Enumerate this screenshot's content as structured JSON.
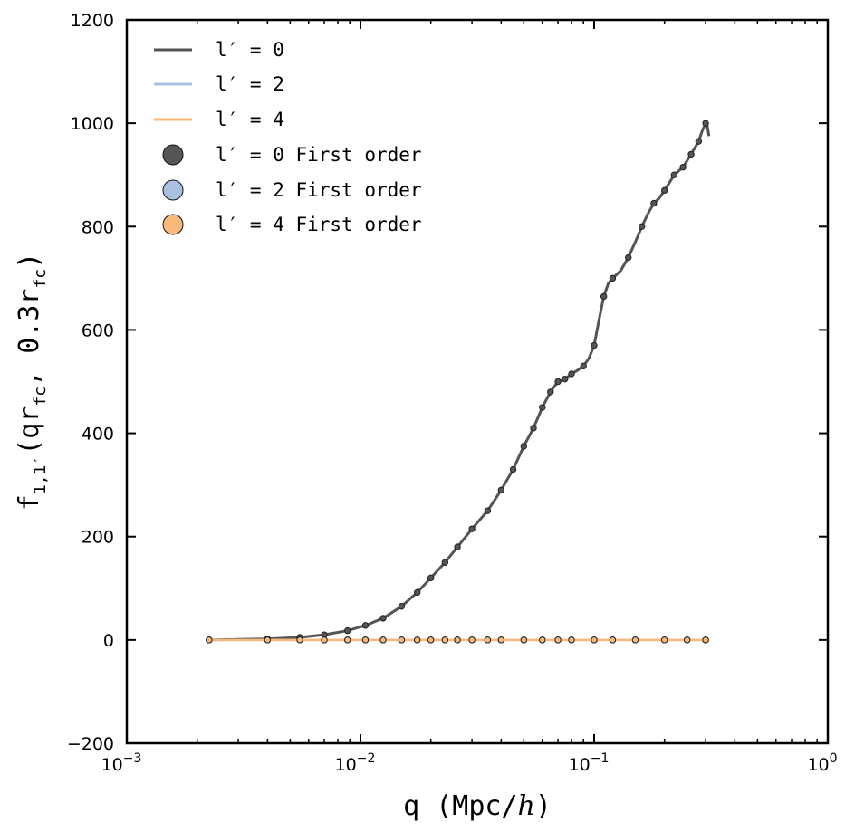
{
  "chart_data": {
    "type": "line",
    "x_scale": "log",
    "xlim": [
      0.001,
      1
    ],
    "ylim": [
      -200,
      1200
    ],
    "xlabel": "q (Mpc/h)",
    "ylabel": "f_{1,1'}(qr_fc, 0.3r_fc)",
    "x_ticks": [
      {
        "value": 0.001,
        "base": "10",
        "exp": "−3"
      },
      {
        "value": 0.01,
        "base": "10",
        "exp": "−2"
      },
      {
        "value": 0.1,
        "base": "10",
        "exp": "−1"
      },
      {
        "value": 1,
        "base": "10",
        "exp": "0"
      }
    ],
    "y_ticks": [
      {
        "value": -200,
        "label": "−200"
      },
      {
        "value": 0,
        "label": "0"
      },
      {
        "value": 200,
        "label": "200"
      },
      {
        "value": 400,
        "label": "400"
      },
      {
        "value": 600,
        "label": "600"
      },
      {
        "value": 800,
        "label": "800"
      },
      {
        "value": 1000,
        "label": "1000"
      },
      {
        "value": 1200,
        "label": "1200"
      }
    ],
    "grid": false,
    "legend_position": "top-left",
    "colors": {
      "l0": "#555555",
      "l2": "#a9c1e0",
      "l4": "#f9b97a"
    },
    "series": [
      {
        "name": "l′ = 0",
        "kind": "line",
        "color": "#555555",
        "x": [
          0.00225,
          0.003,
          0.004,
          0.0055,
          0.007,
          0.0088,
          0.0105,
          0.0125,
          0.015,
          0.0175,
          0.02,
          0.023,
          0.026,
          0.03,
          0.035,
          0.04,
          0.045,
          0.05,
          0.055,
          0.06,
          0.065,
          0.07,
          0.075,
          0.08,
          0.085,
          0.09,
          0.095,
          0.1,
          0.105,
          0.11,
          0.115,
          0.12,
          0.13,
          0.14,
          0.15,
          0.16,
          0.17,
          0.18,
          0.19,
          0.2,
          0.21,
          0.22,
          0.24,
          0.26,
          0.28,
          0.29,
          0.3,
          0.305,
          0.31
        ],
        "y": [
          0,
          1,
          2,
          5,
          10,
          18,
          28,
          42,
          65,
          92,
          120,
          150,
          180,
          215,
          250,
          290,
          330,
          375,
          410,
          450,
          480,
          500,
          505,
          515,
          522,
          530,
          545,
          570,
          620,
          665,
          690,
          700,
          715,
          740,
          770,
          800,
          825,
          845,
          855,
          870,
          885,
          900,
          915,
          940,
          965,
          985,
          1000,
          995,
          975
        ]
      },
      {
        "name": "l′ = 2",
        "kind": "line",
        "color": "#a9c1e0",
        "x": [
          0.00225,
          0.01,
          0.05,
          0.1,
          0.2,
          0.3,
          0.31
        ],
        "y": [
          0,
          0,
          0,
          0,
          0,
          0,
          -2
        ]
      },
      {
        "name": "l′ = 4",
        "kind": "line",
        "color": "#f9b97a",
        "x": [
          0.00225,
          0.01,
          0.05,
          0.1,
          0.2,
          0.3,
          0.31
        ],
        "y": [
          0,
          0,
          0,
          0,
          0,
          0,
          -3
        ]
      },
      {
        "name": "l′ = 0 First order",
        "kind": "markers",
        "color": "#555555",
        "x": [
          0.00225,
          0.004,
          0.0055,
          0.007,
          0.0088,
          0.0105,
          0.0125,
          0.015,
          0.0175,
          0.02,
          0.023,
          0.026,
          0.03,
          0.035,
          0.04,
          0.045,
          0.05,
          0.055,
          0.06,
          0.065,
          0.07,
          0.075,
          0.08,
          0.09,
          0.1,
          0.11,
          0.12,
          0.14,
          0.16,
          0.18,
          0.2,
          0.22,
          0.24,
          0.26,
          0.28,
          0.3
        ],
        "y": [
          0,
          2,
          5,
          10,
          18,
          28,
          42,
          65,
          92,
          120,
          150,
          180,
          215,
          250,
          290,
          330,
          375,
          410,
          450,
          480,
          500,
          505,
          515,
          530,
          570,
          665,
          700,
          740,
          800,
          845,
          870,
          900,
          915,
          940,
          965,
          1000
        ]
      },
      {
        "name": "l′ = 2 First order",
        "kind": "markers",
        "color": "#a9c1e0",
        "x": [
          0.00225,
          0.004,
          0.0055,
          0.007,
          0.0088,
          0.0105,
          0.0125,
          0.015,
          0.0175,
          0.02,
          0.023,
          0.026,
          0.03,
          0.035,
          0.04,
          0.05,
          0.06,
          0.07,
          0.08,
          0.1,
          0.12,
          0.15,
          0.2,
          0.25,
          0.3
        ],
        "y": [
          0,
          0,
          0,
          0,
          0,
          0,
          0,
          0,
          0,
          0,
          0,
          0,
          0,
          0,
          0,
          0,
          0,
          0,
          0,
          0,
          0,
          0,
          0,
          0,
          0
        ]
      },
      {
        "name": "l′ = 4 First order",
        "kind": "markers",
        "color": "#f9b97a",
        "x": [
          0.00225,
          0.004,
          0.0055,
          0.007,
          0.0088,
          0.0105,
          0.0125,
          0.015,
          0.0175,
          0.02,
          0.023,
          0.026,
          0.03,
          0.035,
          0.04,
          0.05,
          0.06,
          0.07,
          0.08,
          0.1,
          0.12,
          0.15,
          0.2,
          0.25,
          0.3
        ],
        "y": [
          0,
          0,
          0,
          0,
          0,
          0,
          0,
          0,
          0,
          0,
          0,
          0,
          0,
          0,
          0,
          0,
          0,
          0,
          0,
          0,
          0,
          0,
          0,
          0,
          0
        ]
      }
    ]
  }
}
